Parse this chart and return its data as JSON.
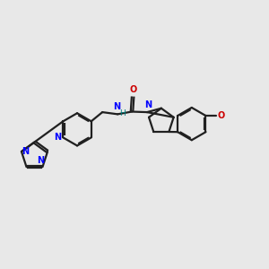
{
  "bg_color": "#e8e8e8",
  "bond_color": "#202020",
  "N_color": "#0000ff",
  "O_color": "#cc0000",
  "teal_color": "#008080",
  "lw": 1.6,
  "dbo": 0.018,
  "figsize": [
    3.0,
    3.0
  ],
  "dpi": 100,
  "xlim": [
    -2.5,
    2.8
  ],
  "ylim": [
    -1.5,
    1.5
  ]
}
